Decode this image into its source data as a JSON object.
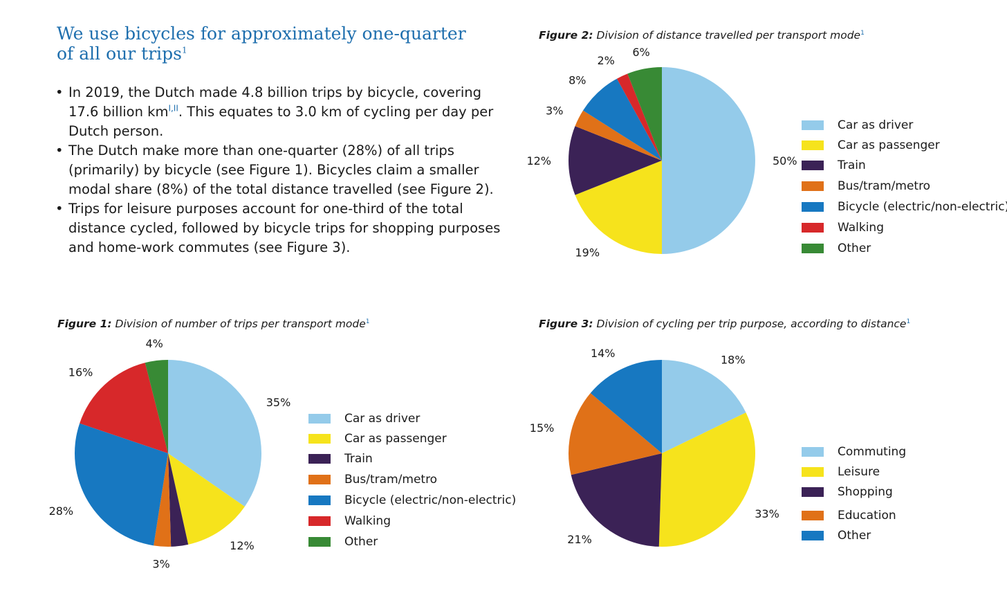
{
  "heading": {
    "text": "We use bicycles for approximately one-quarter of all our trips",
    "footnote": "1"
  },
  "bullets": [
    {
      "pre": "In 2019, the Dutch made 4.8 billion trips by bicycle, covering 17.6 billion km",
      "sup": "I,II",
      "post": ". This equates to 3.0 km of cycling per day per Dutch person."
    },
    {
      "pre": "The Dutch make more than one-quarter (28%) of all trips (primarily) by bicycle (see Figure 1). Bicycles claim a smaller modal share (8%) of the total distance travelled (see Figure 2).",
      "sup": "",
      "post": ""
    },
    {
      "pre": "Trips for leisure purposes account for one-third of the total distance cycled, followed by bicycle trips for shopping purposes and home-work commutes (see Figure 3).",
      "sup": "",
      "post": ""
    }
  ],
  "figures": {
    "fig2": {
      "label": "Figure 2:",
      "title": "Division of distance travelled per transport mode",
      "footnote": "1"
    },
    "fig1": {
      "label": "Figure 1:",
      "title": "Division of number of trips per transport mode",
      "footnote": "1"
    },
    "fig3": {
      "label": "Figure 3:",
      "title": "Division of cycling per trip purpose, according to distance",
      "footnote": "1"
    }
  },
  "chart_data": [
    {
      "id": "fig2",
      "type": "pie",
      "title": "Figure 2: Division of distance travelled per transport mode",
      "categories": [
        "Car as driver",
        "Car as passenger",
        "Train",
        "Bus/tram/metro",
        "Bicycle (electric/non-electric)",
        "Walking",
        "Other"
      ],
      "values": [
        50,
        19,
        12,
        3,
        8,
        2,
        6
      ],
      "labels": [
        "50%",
        "19%",
        "12%",
        "3%",
        "8%",
        "2%",
        "6%"
      ],
      "colors": [
        "#94cbea",
        "#f6e31c",
        "#3b2256",
        "#e07118",
        "#1778c1",
        "#d7282a",
        "#388a35"
      ],
      "legend": "right"
    },
    {
      "id": "fig1",
      "type": "pie",
      "title": "Figure 1: Division of number of trips per transport mode",
      "categories": [
        "Car as driver",
        "Car as passenger",
        "Train",
        "Bus/tram/metro",
        "Bicycle (electric/non-electric)",
        "Walking",
        "Other"
      ],
      "values": [
        35,
        12,
        3,
        3,
        28,
        16,
        4
      ],
      "labels": [
        "35%",
        "12%",
        "",
        "3%",
        "28%",
        "16%",
        "4%"
      ],
      "colors": [
        "#94cbea",
        "#f6e31c",
        "#3b2256",
        "#e07118",
        "#1778c1",
        "#d7282a",
        "#388a35"
      ],
      "legend": "right"
    },
    {
      "id": "fig3",
      "type": "pie",
      "title": "Figure 3: Division of cycling per trip purpose, according to distance",
      "categories": [
        "Commuting",
        "Leisure",
        "Shopping",
        "Education",
        "Other"
      ],
      "values": [
        18,
        33,
        21,
        15,
        14
      ],
      "labels": [
        "18%",
        "33%",
        "21%",
        "15%",
        "14%"
      ],
      "colors": [
        "#94cbea",
        "#f6e31c",
        "#3b2256",
        "#e07118",
        "#1778c1"
      ],
      "legend": "right"
    }
  ]
}
